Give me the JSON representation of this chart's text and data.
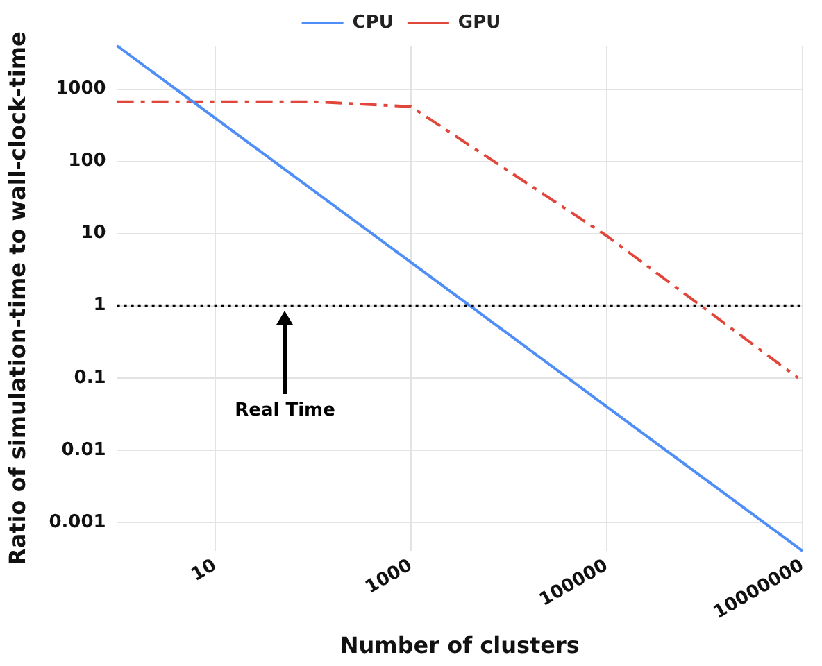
{
  "chart_data": {
    "type": "line",
    "xlabel": "Number of clusters",
    "ylabel": "Ratio of simulation-time to wall-clock-time",
    "log": "xy",
    "grid": true,
    "legend": "top",
    "marker": "none",
    "xlim": [
      1,
      10000000
    ],
    "xticks": [
      10,
      1000,
      100000,
      10000000
    ],
    "ylim": [
      0.0004,
      4000
    ],
    "yticks": [
      0.001,
      0.01,
      0.1,
      1,
      10,
      100,
      1000
    ],
    "series": [
      {
        "name": "CPU",
        "color": "#4f8ef7",
        "x": [
          1,
          10000000
        ],
        "values": [
          4000,
          0.0004
        ],
        "line_style": "solid"
      },
      {
        "name": "GPU",
        "color": "#e0463a",
        "x": [
          1,
          100,
          1000,
          100000,
          9000000
        ],
        "values": [
          670,
          670,
          575,
          9.3,
          0.1
        ],
        "line_style": "dashdot"
      }
    ],
    "ref_lines": [
      {
        "axis": "y",
        "value": 1,
        "color": "#000000",
        "line_style": "dotted"
      }
    ],
    "annotations": [
      "Real Time"
    ]
  }
}
